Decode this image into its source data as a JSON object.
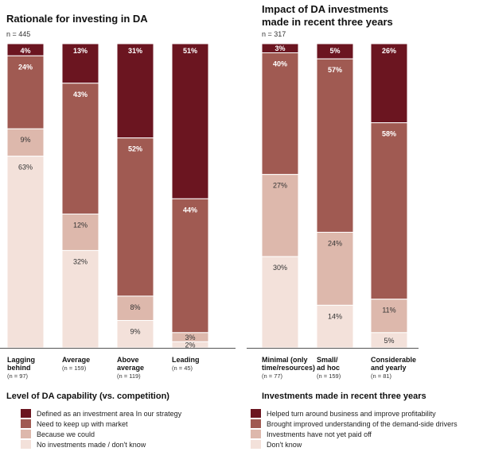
{
  "chart_data": [
    {
      "type": "bar",
      "stacked": true,
      "normalized": true,
      "title": "Rationale for investing in DA",
      "sample_size": "n = 445",
      "categories": [
        {
          "label_lines": [
            "Lagging",
            "behind"
          ],
          "n": "(n = 97)"
        },
        {
          "label_lines": [
            "Average"
          ],
          "n": "(n = 159)"
        },
        {
          "label_lines": [
            "Above",
            "average"
          ],
          "n": "(n = 119)"
        },
        {
          "label_lines": [
            "Leading"
          ],
          "n": "(n = 45)"
        }
      ],
      "series": [
        {
          "name": "Defined as an investment area In our strategy",
          "color": "#6b1520",
          "values": [
            4,
            13,
            31,
            51
          ],
          "labels": [
            "4%",
            "13%",
            "31%",
            "51%"
          ]
        },
        {
          "name": "Need to keep up with market",
          "color": "#a05a52",
          "values": [
            24,
            43,
            52,
            44
          ],
          "labels": [
            "24%",
            "43%",
            "52%",
            "44%"
          ]
        },
        {
          "name": "Because we could",
          "color": "#ddb8ac",
          "values": [
            9,
            12,
            8,
            3
          ],
          "labels": [
            "9%",
            "12%",
            "8%",
            "3%"
          ]
        },
        {
          "name": "No investments made / don't know",
          "color": "#f3e1da",
          "values": [
            63,
            32,
            9,
            2
          ],
          "labels": [
            "63%",
            "32%",
            "9%",
            "2%"
          ]
        }
      ],
      "legend_title": "Level of DA capability (vs. competition)",
      "ylim": [
        0,
        100
      ]
    },
    {
      "type": "bar",
      "stacked": true,
      "normalized": true,
      "title_lines": [
        "Impact of DA investments",
        "made in recent three years"
      ],
      "sample_size": "n = 317",
      "categories": [
        {
          "label_lines": [
            "Minimal (only",
            "time/resources)"
          ],
          "n": "(n = 77)"
        },
        {
          "label_lines": [
            "Small/",
            "ad hoc"
          ],
          "n": "(n = 159)"
        },
        {
          "label_lines": [
            "Considerable",
            "and yearly"
          ],
          "n": "(n = 81)"
        }
      ],
      "series": [
        {
          "name": "Helped turn around business and improve profitability",
          "color": "#6b1520",
          "values": [
            3,
            5,
            26
          ],
          "labels": [
            "3%",
            "5%",
            "26%"
          ]
        },
        {
          "name": "Brought improved understanding of the demand-side drivers",
          "color": "#a05a52",
          "values": [
            40,
            57,
            58
          ],
          "labels": [
            "40%",
            "57%",
            "58%"
          ]
        },
        {
          "name": "Investments have not yet paid off",
          "color": "#ddb8ac",
          "values": [
            27,
            24,
            11
          ],
          "labels": [
            "27%",
            "24%",
            "11%"
          ]
        },
        {
          "name": "Don't know",
          "color": "#f3e1da",
          "values": [
            30,
            14,
            5
          ],
          "labels": [
            "30%",
            "14%",
            "5%"
          ]
        }
      ],
      "legend_title": "Investments made in recent three years",
      "ylim": [
        0,
        100
      ]
    }
  ]
}
